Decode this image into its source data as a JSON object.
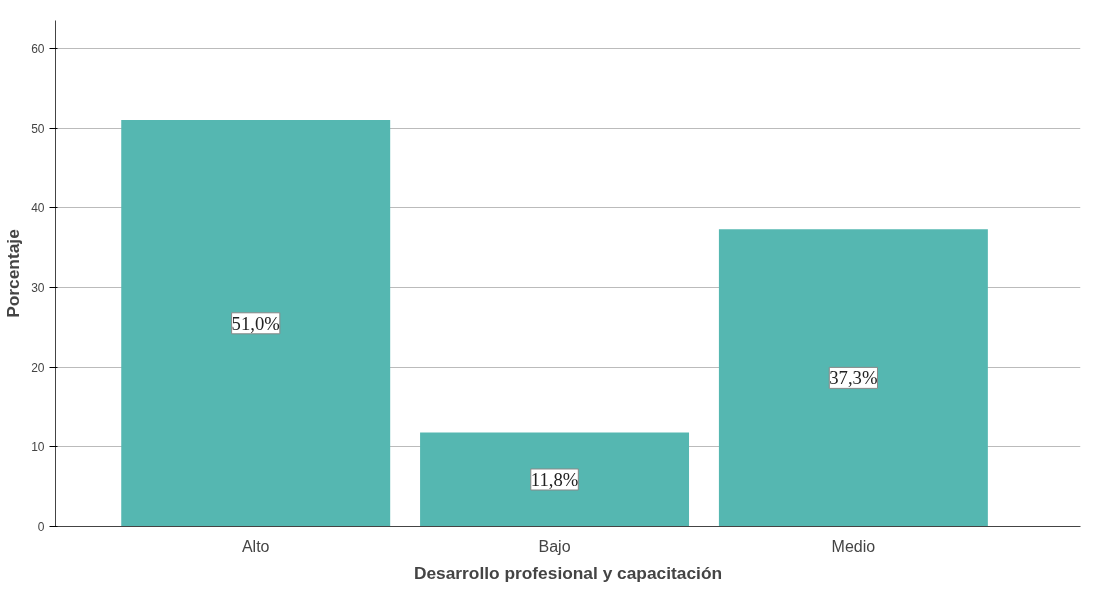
{
  "chart_data": {
    "type": "bar",
    "xlabel": "Desarrollo profesional y capacitación",
    "ylabel": "Porcentaje",
    "categories": [
      "Alto",
      "Bajo",
      "Medio"
    ],
    "values": [
      51.0,
      11.8,
      37.3
    ],
    "value_labels": [
      "51,0%",
      "11,8%",
      "37,3%"
    ],
    "color": "#55b7b1",
    "ylim": [
      0,
      63.5
    ],
    "yticks": [
      0,
      10,
      20,
      30,
      40,
      50,
      60
    ],
    "grid": "y"
  }
}
